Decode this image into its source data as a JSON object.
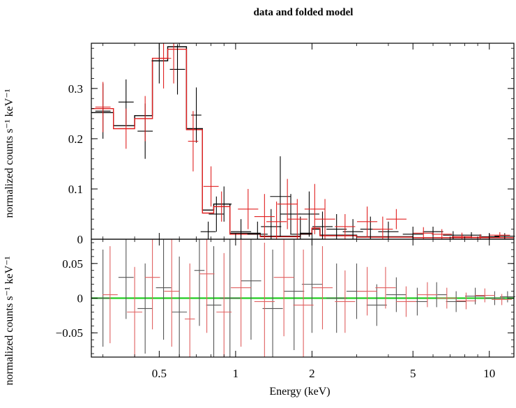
{
  "chart_data": {
    "type": "scatter",
    "title": "data and folded model",
    "xlabel": "Energy (keV)",
    "x_scale": "log",
    "xlim": [
      0.27,
      12.5
    ],
    "x_ticks": [
      0.5,
      1,
      2,
      5,
      10
    ],
    "x_ticklabels": [
      "0.5",
      "1",
      "2",
      "5",
      "10"
    ],
    "panels": [
      {
        "name": "spectrum",
        "ylabel": "normalized counts s⁻¹ keV⁻¹",
        "ylim": [
          0,
          0.39
        ],
        "y_ticks": [
          0,
          0.1,
          0.2,
          0.3
        ],
        "y_ticklabels": [
          "0",
          "0.1",
          "0.2",
          "0.3"
        ],
        "series": [
          {
            "color": "#000000",
            "points": [
              [
                0.3,
                0.255,
                0.03,
                0.055
              ],
              [
                0.37,
                0.273,
                0.03,
                0.045
              ],
              [
                0.44,
                0.215,
                0.03,
                0.055
              ],
              [
                0.5,
                0.355,
                0.03,
                0.045
              ],
              [
                0.59,
                0.338,
                0.03,
                0.05
              ],
              [
                0.7,
                0.247,
                0.02,
                0.055
              ],
              [
                0.78,
                0.015,
                0.03,
                0.02
              ],
              [
                0.84,
                0.05,
                0.03,
                0.035
              ],
              [
                0.9,
                0.07,
                0.03,
                0.035
              ],
              [
                1.05,
                0.015,
                0.04,
                0.025
              ],
              [
                1.22,
                0.01,
                0.04,
                0.025
              ],
              [
                1.38,
                0.025,
                0.04,
                0.035
              ],
              [
                1.5,
                0.085,
                0.04,
                0.08
              ],
              [
                1.65,
                0.05,
                0.04,
                0.04
              ],
              [
                1.8,
                0.01,
                0.04,
                0.035
              ],
              [
                1.95,
                0.05,
                0.04,
                0.045
              ],
              [
                2.2,
                0.025,
                0.04,
                0.03
              ],
              [
                2.5,
                0.02,
                0.04,
                0.03
              ],
              [
                2.9,
                0.015,
                0.04,
                0.025
              ],
              [
                3.4,
                0.02,
                0.04,
                0.025
              ],
              [
                4.0,
                0.015,
                0.04,
                0.02
              ],
              [
                5.0,
                0.01,
                0.04,
                0.015
              ],
              [
                6.0,
                0.015,
                0.04,
                0.01
              ],
              [
                7.2,
                0.008,
                0.04,
                0.008
              ],
              [
                8.5,
                0.008,
                0.04,
                0.006
              ],
              [
                10.0,
                0.005,
                0.04,
                0.006
              ],
              [
                11.5,
                0.006,
                0.04,
                0.006
              ]
            ]
          },
          {
            "color": "#e02020",
            "points": [
              [
                0.3,
                0.263,
                0.03,
                0.05
              ],
              [
                0.37,
                0.22,
                0.03,
                0.04
              ],
              [
                0.44,
                0.24,
                0.03,
                0.045
              ],
              [
                0.52,
                0.36,
                0.03,
                0.06
              ],
              [
                0.57,
                0.39,
                0.03,
                0.08
              ],
              [
                0.68,
                0.195,
                0.02,
                0.06
              ],
              [
                0.8,
                0.105,
                0.03,
                0.04
              ],
              [
                0.88,
                0.065,
                0.03,
                0.03
              ],
              [
                1.12,
                0.06,
                0.04,
                0.04
              ],
              [
                1.3,
                0.045,
                0.04,
                0.045
              ],
              [
                1.45,
                0.035,
                0.04,
                0.04
              ],
              [
                1.6,
                0.07,
                0.04,
                0.05
              ],
              [
                1.75,
                0.04,
                0.04,
                0.04
              ],
              [
                2.05,
                0.06,
                0.04,
                0.05
              ],
              [
                2.25,
                0.04,
                0.04,
                0.04
              ],
              [
                2.7,
                0.025,
                0.04,
                0.025
              ],
              [
                3.3,
                0.035,
                0.04,
                0.03
              ],
              [
                3.8,
                0.02,
                0.04,
                0.025
              ],
              [
                4.3,
                0.04,
                0.04,
                0.02
              ],
              [
                5.5,
                0.012,
                0.04,
                0.012
              ],
              [
                6.5,
                0.01,
                0.04,
                0.01
              ],
              [
                7.8,
                0.005,
                0.04,
                0.008
              ],
              [
                9.2,
                0.004,
                0.04,
                0.006
              ],
              [
                11.0,
                0.008,
                0.04,
                0.006
              ]
            ]
          }
        ],
        "model": [
          {
            "color": "#000000",
            "steps": [
              [
                0.27,
                0.33,
                0.252
              ],
              [
                0.33,
                0.4,
                0.226
              ],
              [
                0.4,
                0.47,
                0.246
              ],
              [
                0.47,
                0.54,
                0.355
              ],
              [
                0.54,
                0.64,
                0.383
              ],
              [
                0.64,
                0.74,
                0.22
              ],
              [
                0.74,
                0.82,
                0.058
              ],
              [
                0.82,
                0.95,
                0.07
              ],
              [
                0.95,
                1.25,
                0.012
              ],
              [
                1.25,
                1.8,
                0.006
              ],
              [
                1.8,
                2.0,
                0.012
              ],
              [
                2.0,
                2.15,
                0.02
              ],
              [
                2.15,
                3.0,
                0.008
              ],
              [
                3.0,
                5.0,
                0.005
              ],
              [
                5.0,
                12.5,
                0.003
              ]
            ]
          },
          {
            "color": "#e02020",
            "steps": [
              [
                0.27,
                0.33,
                0.26
              ],
              [
                0.33,
                0.4,
                0.22
              ],
              [
                0.4,
                0.47,
                0.24
              ],
              [
                0.47,
                0.54,
                0.36
              ],
              [
                0.54,
                0.64,
                0.378
              ],
              [
                0.64,
                0.74,
                0.218
              ],
              [
                0.74,
                0.82,
                0.052
              ],
              [
                0.82,
                0.95,
                0.065
              ],
              [
                0.95,
                1.25,
                0.01
              ],
              [
                1.25,
                1.8,
                0.005
              ],
              [
                1.8,
                2.0,
                0.01
              ],
              [
                2.0,
                2.15,
                0.022
              ],
              [
                2.15,
                3.0,
                0.007
              ],
              [
                3.0,
                5.0,
                0.004
              ],
              [
                5.0,
                12.5,
                0.003
              ]
            ]
          }
        ]
      },
      {
        "name": "residuals",
        "ylabel": "normalized counts s⁻¹ keV⁻¹",
        "ylim": [
          -0.085,
          0.085
        ],
        "y_ticks": [
          -0.05,
          0,
          0.05
        ],
        "y_ticklabels": [
          "−0.05",
          "0",
          "0.05"
        ],
        "zero_line_color": "#22cc22",
        "series": [
          {
            "color": "#555555",
            "points": [
              [
                0.3,
                0.0,
                0.03,
                0.07
              ],
              [
                0.37,
                0.03,
                0.03,
                0.06
              ],
              [
                0.44,
                -0.015,
                0.03,
                0.065
              ],
              [
                0.52,
                0.015,
                0.03,
                0.075
              ],
              [
                0.6,
                -0.02,
                0.03,
                0.08
              ],
              [
                0.72,
                0.04,
                0.02,
                0.08
              ],
              [
                0.82,
                -0.01,
                0.03,
                0.085
              ],
              [
                0.95,
                0.0,
                0.04,
                0.085
              ],
              [
                1.15,
                0.025,
                0.04,
                0.085
              ],
              [
                1.4,
                -0.015,
                0.04,
                0.085
              ],
              [
                1.7,
                0.01,
                0.04,
                0.085
              ],
              [
                2.0,
                0.02,
                0.04,
                0.07
              ],
              [
                2.5,
                0.0,
                0.04,
                0.05
              ],
              [
                3.0,
                0.01,
                0.04,
                0.04
              ],
              [
                3.6,
                -0.01,
                0.04,
                0.03
              ],
              [
                4.3,
                0.005,
                0.04,
                0.025
              ],
              [
                5.2,
                -0.005,
                0.04,
                0.02
              ],
              [
                6.2,
                0.005,
                0.04,
                0.018
              ],
              [
                7.4,
                -0.005,
                0.04,
                0.015
              ],
              [
                8.8,
                0.003,
                0.04,
                0.012
              ],
              [
                10.5,
                0.0,
                0.04,
                0.01
              ],
              [
                11.8,
                0.002,
                0.03,
                0.008
              ]
            ]
          },
          {
            "color": "#e06060",
            "points": [
              [
                0.32,
                0.005,
                0.03,
                0.07
              ],
              [
                0.4,
                -0.02,
                0.03,
                0.065
              ],
              [
                0.47,
                0.03,
                0.03,
                0.075
              ],
              [
                0.56,
                0.01,
                0.03,
                0.08
              ],
              [
                0.66,
                -0.03,
                0.02,
                0.08
              ],
              [
                0.77,
                0.035,
                0.03,
                0.085
              ],
              [
                0.9,
                -0.02,
                0.03,
                0.085
              ],
              [
                1.05,
                0.015,
                0.04,
                0.085
              ],
              [
                1.3,
                -0.005,
                0.04,
                0.085
              ],
              [
                1.55,
                0.03,
                0.04,
                0.085
              ],
              [
                1.85,
                -0.01,
                0.04,
                0.08
              ],
              [
                2.2,
                0.015,
                0.04,
                0.06
              ],
              [
                2.7,
                -0.005,
                0.04,
                0.045
              ],
              [
                3.3,
                0.01,
                0.04,
                0.035
              ],
              [
                3.9,
                0.015,
                0.04,
                0.03
              ],
              [
                4.7,
                -0.005,
                0.04,
                0.022
              ],
              [
                5.7,
                0.005,
                0.04,
                0.018
              ],
              [
                6.8,
                0.0,
                0.04,
                0.015
              ],
              [
                8.1,
                -0.004,
                0.04,
                0.012
              ],
              [
                9.6,
                0.004,
                0.04,
                0.01
              ],
              [
                11.2,
                -0.002,
                0.04,
                0.008
              ]
            ]
          }
        ]
      }
    ]
  }
}
